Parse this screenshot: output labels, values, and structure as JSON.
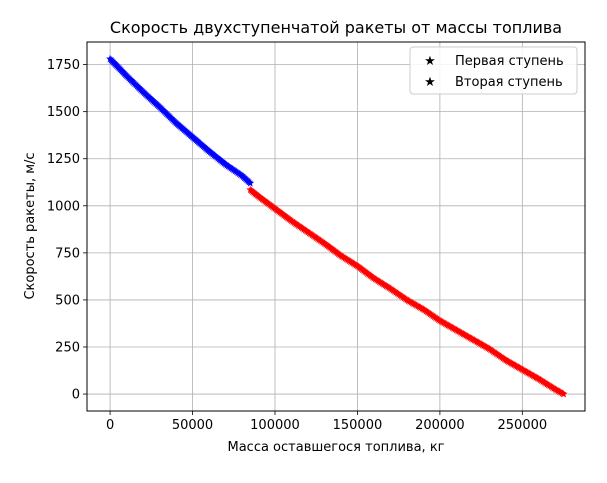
{
  "chart_data": {
    "type": "scatter",
    "title": "Скорость двухступенчатой ракеты от массы топлива",
    "xlabel": "Масса оставшегося топлива, кг",
    "ylabel": "Скорость ракеты, м/с",
    "xlim": [
      -14000,
      288000
    ],
    "ylim": [
      -90,
      1870
    ],
    "xticks": [
      0,
      50000,
      100000,
      150000,
      200000,
      250000
    ],
    "xtick_labels": [
      "0",
      "50000",
      "100000",
      "150000",
      "200000",
      "250000"
    ],
    "yticks": [
      0,
      250,
      500,
      750,
      1000,
      1250,
      1500,
      1750
    ],
    "ytick_labels": [
      "0",
      "250",
      "500",
      "750",
      "1000",
      "1250",
      "1500",
      "1750"
    ],
    "grid": true,
    "legend_position": "top-right",
    "marker": "star",
    "series": [
      {
        "name": "Первая ступень",
        "color": "#ff0000",
        "x": [
          275000,
          270000,
          260000,
          250000,
          240000,
          230000,
          220000,
          210000,
          200000,
          190000,
          180000,
          170000,
          160000,
          150000,
          140000,
          130000,
          120000,
          110000,
          100000,
          90000,
          85000
        ],
        "y": [
          0,
          25,
          80,
          130,
          180,
          240,
          290,
          340,
          390,
          450,
          500,
          560,
          615,
          680,
          735,
          800,
          860,
          920,
          985,
          1050,
          1085
        ]
      },
      {
        "name": "Вторая ступень",
        "color": "#0000ff",
        "x": [
          85000,
          80000,
          70000,
          60000,
          50000,
          40000,
          30000,
          20000,
          10000,
          0
        ],
        "y": [
          1120,
          1160,
          1220,
          1290,
          1365,
          1440,
          1525,
          1605,
          1690,
          1780
        ]
      }
    ]
  }
}
